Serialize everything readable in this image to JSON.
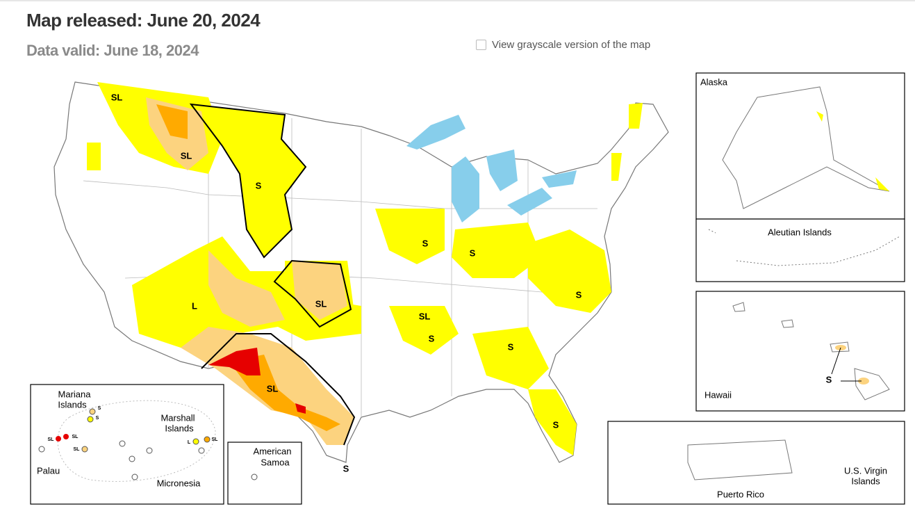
{
  "header": {
    "title": "Map released: June 20, 2024",
    "subtitle": "Data valid: June 18, 2024"
  },
  "grayscale_toggle": {
    "label": "View grayscale version of the map"
  },
  "map": {
    "labels": [
      "SL",
      "SL",
      "S",
      "L",
      "SL",
      "S",
      "S",
      "SL",
      "S",
      "S",
      "S",
      "SL",
      "S",
      "S"
    ]
  },
  "insets": {
    "alaska": {
      "label": "Alaska"
    },
    "aleutian_islands": {
      "label": "Aleutian Islands"
    },
    "hawaii": {
      "label": "Hawaii",
      "labels": [
        "S"
      ]
    },
    "puerto_rico": {
      "label": "Puerto Rico"
    },
    "virgin_islands": {
      "label": [
        "U.S. Virgin",
        "Islands"
      ]
    },
    "pacific": {
      "mariana": [
        "Mariana",
        "Islands"
      ],
      "marshall": [
        "Marshall",
        "Islands"
      ],
      "palau": "Palau",
      "micronesia": "Micronesia",
      "labels": [
        "S",
        "S",
        "SL",
        "SL",
        "SL",
        "L",
        "SL"
      ]
    },
    "american_samoa": {
      "label": [
        "American",
        "Samoa"
      ]
    }
  }
}
